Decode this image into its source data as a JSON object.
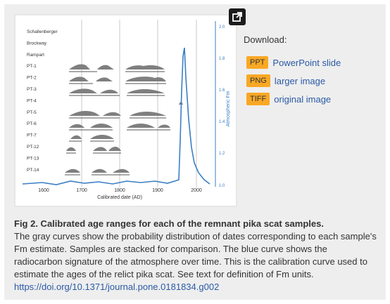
{
  "figure": {
    "row_labels": [
      "Schallenberger",
      "Brockway",
      "Rampart",
      "PT-1",
      "PT-2",
      "PT-3",
      "PT-4",
      "PT-5",
      "PT-6",
      "PT-7",
      "PT-12",
      "PT-13",
      "PT-14"
    ],
    "x_ticks": [
      "1600",
      "1700",
      "1800",
      "1900",
      "2000"
    ],
    "x_label": "Calibrated date (AD)",
    "y_ticks": [
      "2.0",
      "1.8",
      "1.6",
      "1.4",
      "1.2",
      "1.0"
    ],
    "y_label": "Atmospheric Fm"
  },
  "download": {
    "title": "Download:",
    "items": [
      {
        "badge": "PPT",
        "label": "PowerPoint slide"
      },
      {
        "badge": "PNG",
        "label": "larger image"
      },
      {
        "badge": "TIFF",
        "label": "original image"
      }
    ]
  },
  "caption": {
    "title": "Fig 2. Calibrated age ranges for each of the remnant pika scat samples.",
    "body": "The gray curves show the probability distribution of dates corresponding to each sample's Fm estimate. Samples are stacked for comparison. The blue curve shows the radiocarbon signature of the atmosphere over time. This is the calibration curve used to estimate the ages of the relict pika scat. See text for definition of Fm units.",
    "doi": "https://doi.org/10.1371/journal.pone.0181834.g002"
  },
  "colors": {
    "badge": "#f9a825",
    "link": "#2a5aa6",
    "curve": "#3a7fc4",
    "distribution": "#7f7f7f"
  },
  "icons": {
    "expand": "expand-icon"
  }
}
